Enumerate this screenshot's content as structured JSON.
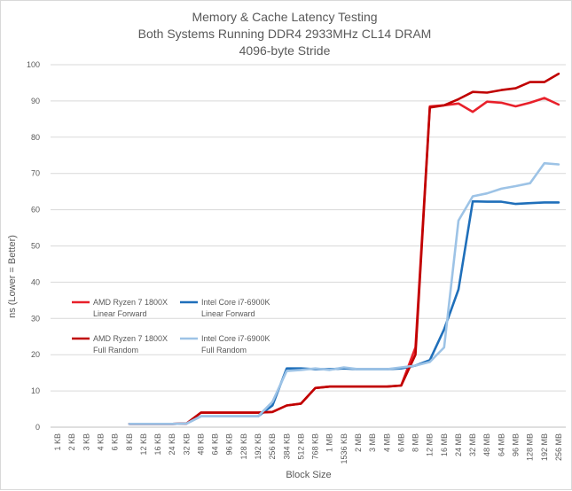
{
  "chart_data": {
    "type": "line",
    "title_lines": [
      "Memory & Cache Latency Testing",
      "Both Systems Running DDR4 2933MHz CL14 DRAM",
      "4096-byte Stride"
    ],
    "xlabel": "Block Size",
    "ylabel": "ns (Lower = Better)",
    "ylim": [
      0,
      100
    ],
    "yticks": [
      0,
      10,
      20,
      30,
      40,
      50,
      60,
      70,
      80,
      90,
      100
    ],
    "grid": "horizontal",
    "legend_position": "center-left",
    "categories": [
      "1 KB",
      "2 KB",
      "3 KB",
      "4 KB",
      "6 KB",
      "8 KB",
      "12 KB",
      "16 KB",
      "24 KB",
      "32 KB",
      "48 KB",
      "64 KB",
      "96 KB",
      "128 KB",
      "192 KB",
      "256 KB",
      "384 KB",
      "512 KB",
      "768 KB",
      "1 MB",
      "1536 KB",
      "2 MB",
      "3 MB",
      "4 MB",
      "6 MB",
      "8 MB",
      "12 MB",
      "16 MB",
      "24 MB",
      "32 MB",
      "48 MB",
      "64 MB",
      "96 MB",
      "128 MB",
      "192 MB",
      "256 MB"
    ],
    "series": [
      {
        "name": "AMD Ryzen 7 1800X Linear Forward",
        "legend_lines": [
          "AMD Ryzen 7 1800X",
          "Linear Forward"
        ],
        "color": "#e8202a",
        "values": [
          null,
          null,
          null,
          null,
          null,
          0.9,
          0.9,
          0.9,
          0.9,
          1.0,
          4.0,
          4.0,
          4.0,
          4.0,
          4.0,
          4.2,
          6.0,
          6.5,
          10.8,
          11.2,
          11.2,
          11.2,
          11.2,
          11.2,
          11.5,
          22.0,
          88.5,
          88.8,
          89.3,
          87.0,
          89.8,
          89.5,
          88.5,
          89.5,
          90.8,
          89.0
        ]
      },
      {
        "name": "Intel Core i7-6900K Linear Forward",
        "legend_lines": [
          "Intel Core i7-6900K",
          "Linear Forward"
        ],
        "color": "#1f6fba",
        "values": [
          null,
          null,
          null,
          null,
          null,
          0.9,
          0.9,
          0.9,
          0.9,
          1.0,
          3.0,
          3.0,
          3.0,
          3.0,
          3.0,
          6.0,
          16.2,
          16.2,
          16.0,
          16.0,
          16.2,
          16.0,
          16.0,
          16.0,
          16.2,
          17.0,
          18.5,
          27.0,
          38.0,
          62.3,
          62.2,
          62.2,
          61.6,
          61.8,
          62.0,
          62.0
        ]
      },
      {
        "name": "AMD Ryzen 7 1800X Full Random",
        "legend_lines": [
          "AMD Ryzen 7 1800X",
          "Full Random"
        ],
        "color": "#c00000",
        "values": [
          null,
          null,
          null,
          null,
          null,
          0.9,
          0.9,
          0.9,
          0.9,
          1.0,
          4.0,
          4.0,
          4.0,
          4.0,
          4.0,
          4.2,
          6.0,
          6.5,
          10.8,
          11.2,
          11.2,
          11.2,
          11.2,
          11.2,
          11.5,
          20.0,
          88.2,
          88.8,
          90.5,
          92.5,
          92.3,
          93.0,
          93.5,
          95.2,
          95.2,
          97.5
        ]
      },
      {
        "name": "Intel Core i7-6900K Full Random",
        "legend_lines": [
          "Intel Core i7-6900K",
          "Full Random"
        ],
        "color": "#9dc3e6",
        "values": [
          null,
          null,
          null,
          null,
          null,
          0.9,
          0.9,
          0.9,
          0.9,
          1.0,
          3.0,
          3.0,
          3.0,
          3.0,
          3.0,
          7.0,
          15.5,
          15.8,
          16.2,
          15.8,
          16.5,
          16.0,
          16.0,
          16.0,
          16.5,
          17.0,
          18.0,
          22.0,
          57.0,
          63.7,
          64.5,
          65.8,
          66.5,
          67.3,
          72.8,
          72.5
        ]
      }
    ]
  }
}
